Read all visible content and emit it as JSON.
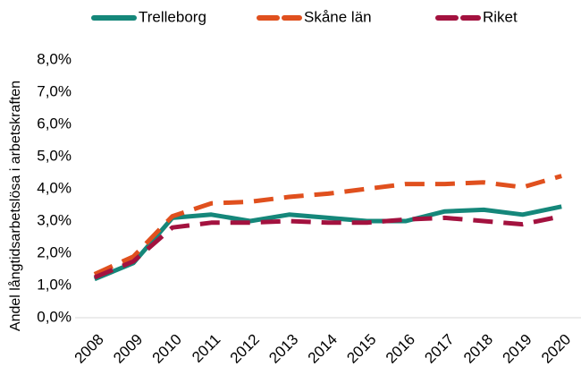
{
  "chart_data": {
    "type": "line",
    "y_label": "Andel långtidsarbetslösa i arbetskraften",
    "categories": [
      "2008",
      "2009",
      "2010",
      "2011",
      "2012",
      "2013",
      "2014",
      "2015",
      "2016",
      "2017",
      "2018",
      "2019",
      "2020"
    ],
    "series": [
      {
        "name": "Trelleborg",
        "color": "#15877a",
        "style": "solid",
        "values": [
          1.2,
          1.7,
          3.1,
          3.2,
          3.0,
          3.2,
          3.1,
          3.0,
          3.0,
          3.3,
          3.35,
          3.2,
          3.45
        ]
      },
      {
        "name": "Skåne län",
        "color": "#e0501e",
        "style": "dashed",
        "values": [
          1.35,
          1.9,
          3.15,
          3.55,
          3.6,
          3.75,
          3.85,
          4.0,
          4.15,
          4.15,
          4.2,
          4.05,
          4.4
        ]
      },
      {
        "name": "Riket",
        "color": "#a3123f",
        "style": "dashed",
        "values": [
          1.25,
          1.75,
          2.8,
          2.95,
          2.95,
          3.0,
          2.95,
          2.95,
          3.05,
          3.1,
          3.0,
          2.9,
          3.15
        ]
      }
    ],
    "ylim": [
      0,
      8
    ],
    "yticks": [
      {
        "value": 0,
        "label": "0,0%"
      },
      {
        "value": 1,
        "label": "1,0%"
      },
      {
        "value": 2,
        "label": "2,0%"
      },
      {
        "value": 3,
        "label": "3,0%"
      },
      {
        "value": 4,
        "label": "4,0%"
      },
      {
        "value": 5,
        "label": "5,0%"
      },
      {
        "value": 6,
        "label": "6,0%"
      },
      {
        "value": 7,
        "label": "7,0%"
      },
      {
        "value": 8,
        "label": "8,0%"
      }
    ],
    "grid": false,
    "legend": "top"
  }
}
